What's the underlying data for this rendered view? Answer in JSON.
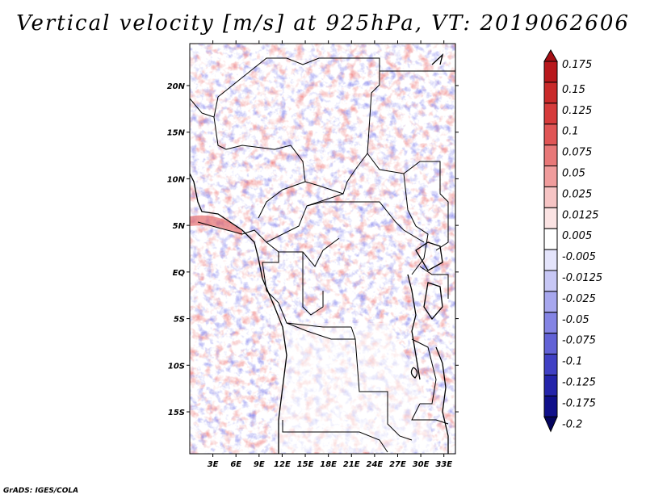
{
  "title": "Vertical velocity [m/s] at 925hPa, VT: 2019062606",
  "footer": "GrADS: IGES/COLA",
  "map": {
    "lon_ticks": [
      "3E",
      "6E",
      "9E",
      "12E",
      "15E",
      "18E",
      "21E",
      "24E",
      "27E",
      "30E",
      "33E"
    ],
    "lat_ticks": [
      "20N",
      "15N",
      "10N",
      "5N",
      "EQ",
      "5S",
      "10S",
      "15S"
    ],
    "lon_range": [
      0,
      34.5
    ],
    "lat_range": [
      -19.5,
      24.5
    ]
  },
  "colorbar": {
    "labels": [
      "0.175",
      "0.15",
      "0.125",
      "0.1",
      "0.075",
      "0.05",
      "0.025",
      "0.0125",
      "0.005",
      "-0.005",
      "-0.0125",
      "-0.025",
      "-0.05",
      "-0.075",
      "-0.1",
      "-0.125",
      "-0.175",
      "-0.2"
    ],
    "colors": [
      "#a50f15",
      "#b8181c",
      "#c92a2a",
      "#d63b3b",
      "#e05555",
      "#e87878",
      "#f09c9c",
      "#f6c4c4",
      "#fbe3e3",
      "#ffffff",
      "#e4e4fb",
      "#c7c7f5",
      "#a7a7ee",
      "#8484e4",
      "#6262d6",
      "#4040c4",
      "#2424aa",
      "#10108a",
      "#04045e"
    ]
  }
}
